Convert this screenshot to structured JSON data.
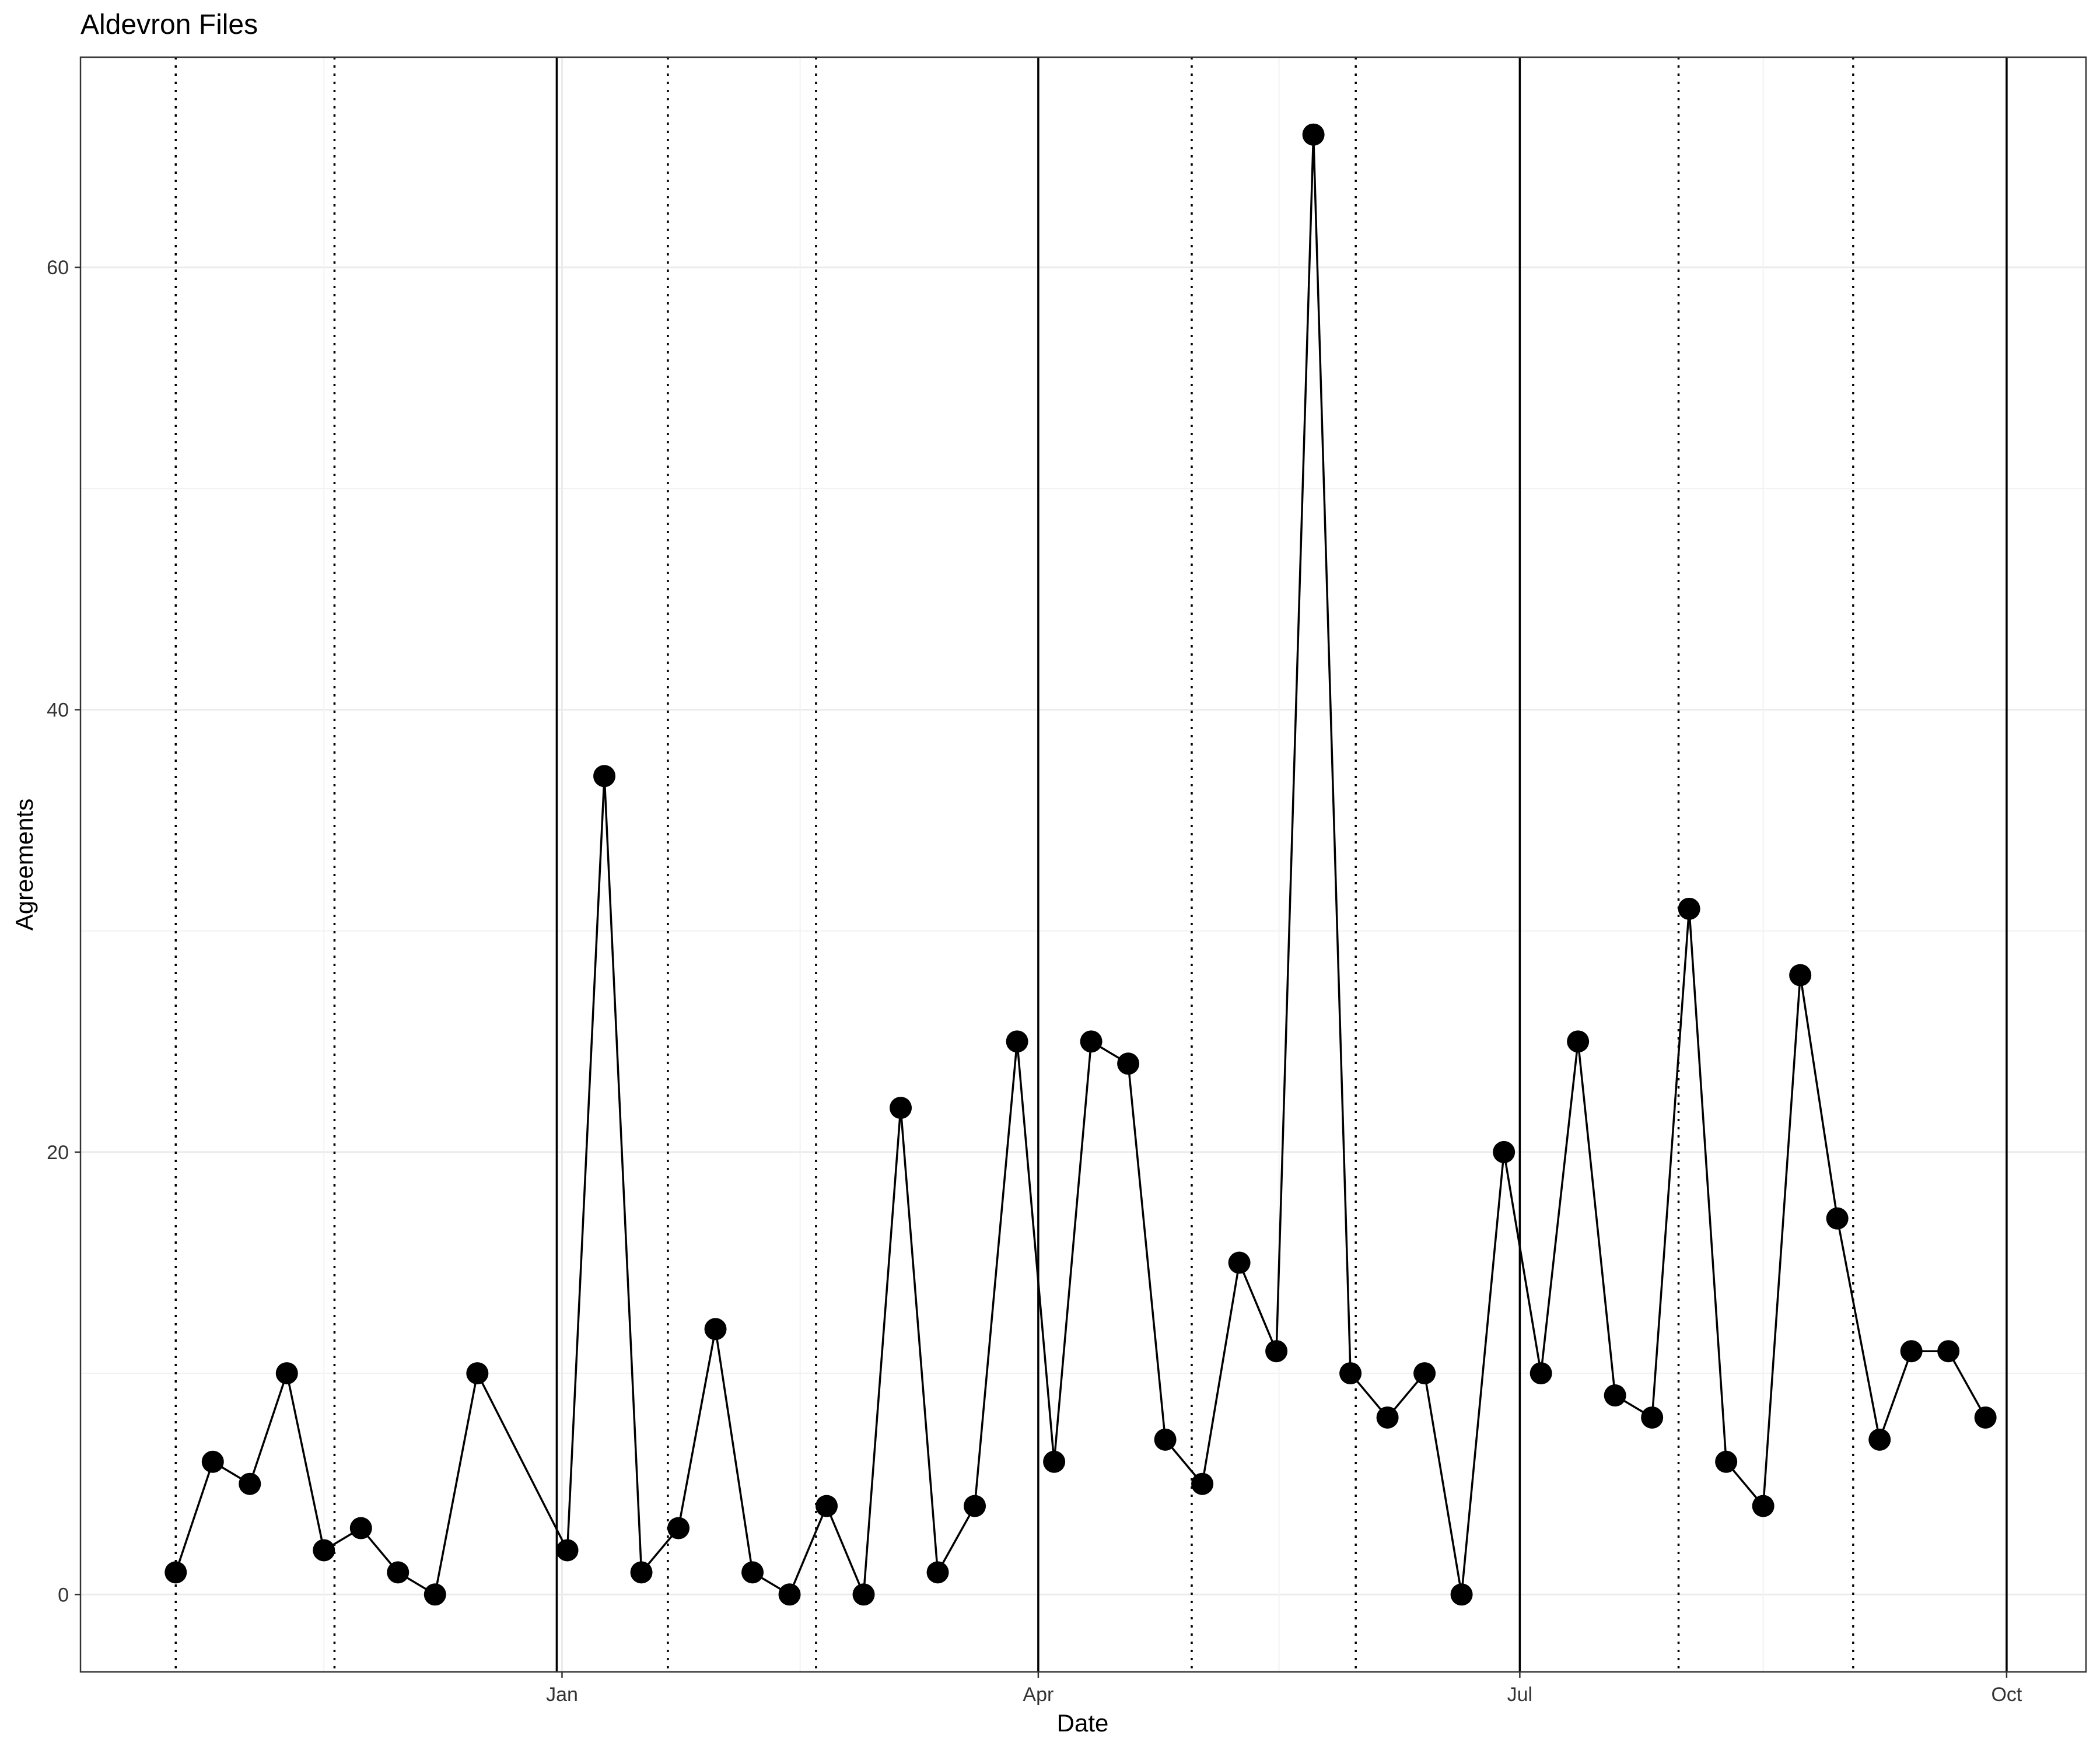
{
  "chart_data": {
    "type": "line",
    "title": "Aldevron Files",
    "xlabel": "Date",
    "ylabel": "Agreements",
    "ylim": [
      -3.5,
      69.5
    ],
    "xlim": [
      "2018-10-02",
      "2019-10-16"
    ],
    "x_ticks": [
      {
        "date": "2019-01-01",
        "label": "Jan"
      },
      {
        "date": "2019-04-01",
        "label": "Apr"
      },
      {
        "date": "2019-07-01",
        "label": "Jul"
      },
      {
        "date": "2019-10-01",
        "label": "Oct"
      }
    ],
    "y_ticks": [
      0,
      20,
      40,
      60
    ],
    "grid": true,
    "vertical_lines_solid": [
      "2018-12-31",
      "2019-04-01",
      "2019-07-01",
      "2019-10-01"
    ],
    "vertical_lines_dotted": [
      "2018-10-20",
      "2018-11-19",
      "2019-01-21",
      "2019-02-18",
      "2019-04-30",
      "2019-05-31",
      "2019-07-31",
      "2019-09-02"
    ],
    "series": [
      {
        "color": "#000000",
        "x": [
          "2018-10-20",
          "2018-10-27",
          "2018-11-03",
          "2018-11-10",
          "2018-11-17",
          "2018-11-24",
          "2018-12-01",
          "2018-12-08",
          "2018-12-16",
          "2019-01-02",
          "2019-01-09",
          "2019-01-16",
          "2019-01-23",
          "2019-01-30",
          "2019-02-06",
          "2019-02-13",
          "2019-02-20",
          "2019-02-27",
          "2019-03-06",
          "2019-03-13",
          "2019-03-20",
          "2019-03-28",
          "2019-04-04",
          "2019-04-11",
          "2019-04-18",
          "2019-04-25",
          "2019-05-02",
          "2019-05-09",
          "2019-05-16",
          "2019-05-23",
          "2019-05-30",
          "2019-06-06",
          "2019-06-13",
          "2019-06-20",
          "2019-06-28",
          "2019-07-05",
          "2019-07-12",
          "2019-07-19",
          "2019-07-26",
          "2019-08-02",
          "2019-08-09",
          "2019-08-16",
          "2019-08-23",
          "2019-08-30",
          "2019-09-07",
          "2019-09-13",
          "2019-09-20",
          "2019-09-27"
        ],
        "values": [
          1,
          6,
          5,
          10,
          2,
          3,
          1,
          0,
          10,
          2,
          37,
          1,
          3,
          12,
          1,
          0,
          4,
          0,
          22,
          1,
          4,
          25,
          6,
          25,
          24,
          7,
          5,
          15,
          11,
          66,
          10,
          8,
          10,
          0,
          20,
          10,
          25,
          9,
          8,
          31,
          6,
          4,
          28,
          17,
          7,
          11,
          11,
          8
        ]
      }
    ]
  }
}
